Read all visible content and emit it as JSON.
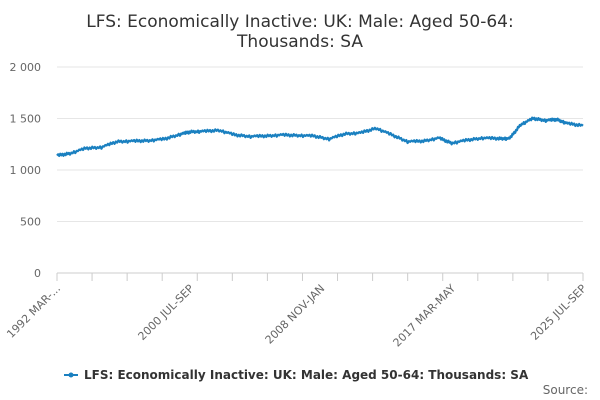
{
  "chart_data": {
    "type": "line",
    "title_lines": [
      "LFS: Economically Inactive: UK: Male: Aged 50-64:",
      "Thousands: SA"
    ],
    "xlabel": "",
    "ylabel": "",
    "ylim": [
      0,
      2000
    ],
    "y_ticks": [
      0,
      500,
      1000,
      1500,
      2000
    ],
    "y_tick_labels": [
      "0",
      "500",
      "1 000",
      "1 500",
      "2 000"
    ],
    "x_tick_labels": [
      "1992 MAR-...",
      "2000 JUL-SEP",
      "2008 NOV-JAN",
      "2017 MAR-MAY",
      "2025 JUL-SEP"
    ],
    "x_tick_positions": [
      1992.17,
      2000.67,
      2009.0,
      2017.33,
      2025.67
    ],
    "xlim": [
      1992.17,
      2025.67
    ],
    "grid": true,
    "legend_position": "bottom",
    "source_label": "Source:",
    "series": [
      {
        "name": "LFS: Economically Inactive: UK: Male: Aged 50-64: Thousands: SA",
        "color": "#1a80c0",
        "x": [
          1992.17,
          1993.0,
          1994.0,
          1995.0,
          1996.0,
          1997.0,
          1998.0,
          1999.0,
          2000.0,
          2000.67,
          2001.5,
          2002.5,
          2003.5,
          2004.5,
          2005.5,
          2006.5,
          2007.5,
          2008.5,
          2009.5,
          2010.5,
          2011.5,
          2012.5,
          2013.5,
          2014.5,
          2015.5,
          2016.5,
          2017.3,
          2018.3,
          2019.3,
          2020.3,
          2021.0,
          2021.7,
          2022.5,
          2023.3,
          2024.0,
          2024.7,
          2025.67
        ],
        "values": [
          1140,
          1160,
          1210,
          1220,
          1275,
          1280,
          1285,
          1300,
          1345,
          1370,
          1375,
          1385,
          1340,
          1325,
          1330,
          1340,
          1335,
          1330,
          1300,
          1350,
          1360,
          1405,
          1340,
          1275,
          1280,
          1310,
          1260,
          1290,
          1310,
          1305,
          1305,
          1440,
          1500,
          1480,
          1490,
          1450,
          1430
        ]
      }
    ]
  }
}
